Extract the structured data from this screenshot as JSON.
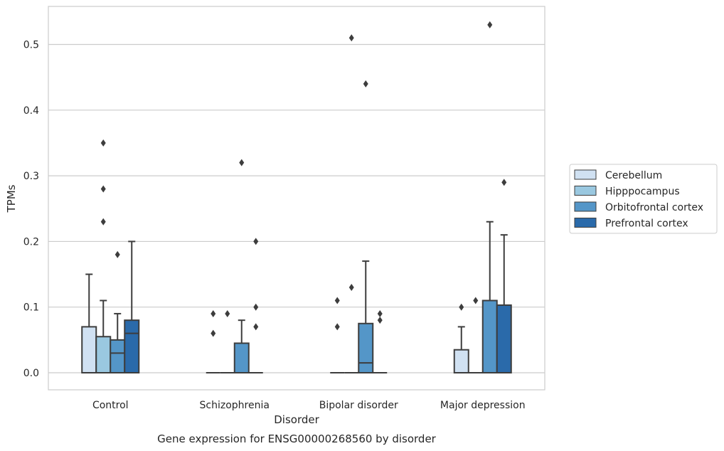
{
  "chart_data": {
    "type": "box",
    "title": "",
    "caption": "Gene expression for ENSG00000268560 by disorder",
    "xlabel": "Disorder",
    "ylabel": "TPMs",
    "ylim": [
      -0.026,
      0.558
    ],
    "yticks": [
      0.0,
      0.1,
      0.2,
      0.3,
      0.4,
      0.5
    ],
    "ytick_labels": [
      "0.0",
      "0.1",
      "0.2",
      "0.3",
      "0.4",
      "0.5"
    ],
    "grid": "horizontal",
    "legend_placement": "right",
    "categories": [
      "Control",
      "Schizophrenia",
      "Bipolar disorder",
      "Major depression"
    ],
    "series": [
      {
        "name": "Cerebellum",
        "color": "#d0e1f2",
        "boxes": [
          {
            "whisker_low": 0.0,
            "q1": 0.0,
            "median": 0.0,
            "q3": 0.07,
            "whisker_high": 0.15,
            "outliers": []
          },
          {
            "whisker_low": 0.0,
            "q1": 0.0,
            "median": 0.0,
            "q3": 0.0,
            "whisker_high": 0.0,
            "outliers": [
              0.06,
              0.09
            ]
          },
          {
            "whisker_low": 0.0,
            "q1": 0.0,
            "median": 0.0,
            "q3": 0.0,
            "whisker_high": 0.0,
            "outliers": [
              0.07,
              0.11
            ]
          },
          {
            "whisker_low": 0.0,
            "q1": 0.0,
            "median": 0.0,
            "q3": 0.035,
            "whisker_high": 0.07,
            "outliers": [
              0.1
            ]
          }
        ]
      },
      {
        "name": "Hipppocampus",
        "color": "#9ac8e0",
        "boxes": [
          {
            "whisker_low": 0.0,
            "q1": 0.0,
            "median": 0.0,
            "q3": 0.055,
            "whisker_high": 0.11,
            "outliers": [
              0.23,
              0.28,
              0.35
            ]
          },
          {
            "whisker_low": 0.0,
            "q1": 0.0,
            "median": 0.0,
            "q3": 0.0,
            "whisker_high": 0.0,
            "outliers": [
              0.09
            ]
          },
          {
            "whisker_low": 0.0,
            "q1": 0.0,
            "median": 0.0,
            "q3": 0.0,
            "whisker_high": 0.0,
            "outliers": [
              0.13,
              0.51
            ]
          },
          {
            "whisker_low": 0.0,
            "q1": 0.0,
            "median": 0.0,
            "q3": 0.0,
            "whisker_high": 0.0,
            "outliers": [
              0.11
            ]
          }
        ]
      },
      {
        "name": "Orbitofrontal cortex",
        "color": "#5496c8",
        "boxes": [
          {
            "whisker_low": 0.0,
            "q1": 0.0,
            "median": 0.03,
            "q3": 0.05,
            "whisker_high": 0.09,
            "outliers": [
              0.18
            ]
          },
          {
            "whisker_low": 0.0,
            "q1": 0.0,
            "median": 0.0,
            "q3": 0.045,
            "whisker_high": 0.08,
            "outliers": [
              0.32
            ]
          },
          {
            "whisker_low": 0.0,
            "q1": 0.0,
            "median": 0.015,
            "q3": 0.075,
            "whisker_high": 0.17,
            "outliers": [
              0.44
            ]
          },
          {
            "whisker_low": 0.0,
            "q1": 0.0,
            "median": 0.0,
            "q3": 0.11,
            "whisker_high": 0.23,
            "outliers": [
              0.53
            ]
          }
        ]
      },
      {
        "name": "Prefrontal cortex",
        "color": "#2a6aaa",
        "boxes": [
          {
            "whisker_low": 0.0,
            "q1": 0.0,
            "median": 0.06,
            "q3": 0.08,
            "whisker_high": 0.2,
            "outliers": []
          },
          {
            "whisker_low": 0.0,
            "q1": 0.0,
            "median": 0.0,
            "q3": 0.0,
            "whisker_high": 0.0,
            "outliers": [
              0.07,
              0.1,
              0.2
            ]
          },
          {
            "whisker_low": 0.0,
            "q1": 0.0,
            "median": 0.0,
            "q3": 0.0,
            "whisker_high": 0.0,
            "outliers": [
              0.08,
              0.09
            ]
          },
          {
            "whisker_low": 0.0,
            "q1": 0.0,
            "median": 0.0,
            "q3": 0.103,
            "whisker_high": 0.21,
            "outliers": [
              0.29
            ]
          }
        ]
      }
    ]
  }
}
